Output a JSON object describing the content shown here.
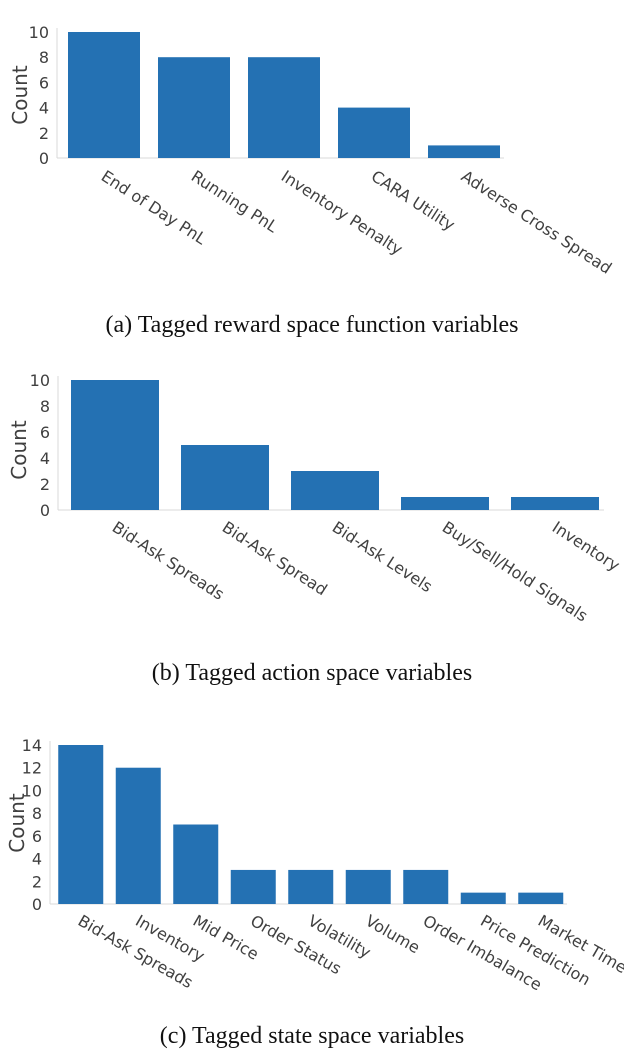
{
  "chart_data": [
    {
      "type": "bar",
      "ylabel": "Count",
      "ylim": [
        0,
        10
      ],
      "yticks": [
        0,
        2,
        4,
        6,
        8,
        10
      ],
      "categories": [
        "End of Day PnL",
        "Running PnL",
        "Inventory Penalty",
        "CARA Utility",
        "Adverse Cross Spread"
      ],
      "values": [
        10,
        8,
        8,
        4,
        1
      ],
      "caption": "(a) Tagged reward space function variables",
      "bar_color": "#2471b3",
      "grid": false
    },
    {
      "type": "bar",
      "ylabel": "Count",
      "ylim": [
        0,
        10
      ],
      "yticks": [
        0,
        2,
        4,
        6,
        8,
        10
      ],
      "categories": [
        "Bid-Ask Spreads",
        "Bid-Ask Spread",
        "Bid-Ask Levels",
        "Buy/Sell/Hold Signals",
        "Inventory"
      ],
      "values": [
        10,
        5,
        3,
        1,
        1
      ],
      "caption": "(b) Tagged action space variables",
      "bar_color": "#2471b3",
      "grid": false
    },
    {
      "type": "bar",
      "ylabel": "Count",
      "ylim": [
        0,
        14
      ],
      "yticks": [
        0,
        2,
        4,
        6,
        8,
        10,
        12,
        14
      ],
      "categories": [
        "Bid-Ask Spreads",
        "Inventory",
        "Mid Price",
        "Order Status",
        "Volatility",
        "Volume",
        "Order Imbalance",
        "Price Prediction",
        "Market Time"
      ],
      "values": [
        14,
        12,
        7,
        3,
        3,
        3,
        3,
        1,
        1
      ],
      "caption": "(c) Tagged state space variables",
      "bar_color": "#2471b3",
      "grid": false
    }
  ]
}
